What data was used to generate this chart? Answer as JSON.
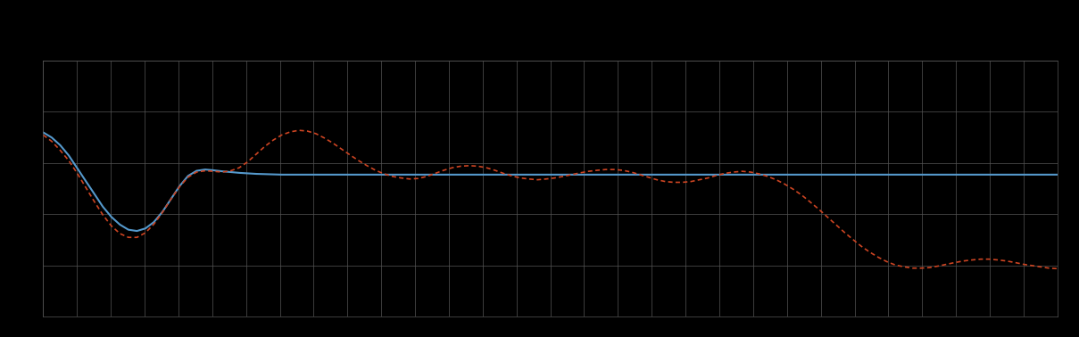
{
  "background_color": "#000000",
  "plot_bg_color": "#000000",
  "grid_color": "#555555",
  "text_color": "#cccccc",
  "blue_line_color": "#5599cc",
  "red_line_color": "#cc4422",
  "figsize": [
    12.09,
    3.78
  ],
  "dpi": 100,
  "xlim": [
    0,
    119
  ],
  "ylim": [
    0,
    10
  ],
  "num_vertical_gridlines": 30,
  "num_horizontal_gridlines": 5,
  "blue_y": [
    7.2,
    7.0,
    6.7,
    6.3,
    5.8,
    5.3,
    4.8,
    4.3,
    3.9,
    3.6,
    3.4,
    3.35,
    3.45,
    3.7,
    4.1,
    4.6,
    5.1,
    5.5,
    5.7,
    5.75,
    5.72,
    5.68,
    5.65,
    5.62,
    5.6,
    5.58,
    5.57,
    5.56,
    5.55,
    5.55,
    5.55,
    5.55,
    5.55,
    5.55,
    5.55,
    5.55,
    5.55,
    5.55,
    5.55,
    5.55,
    5.55,
    5.55,
    5.55,
    5.55,
    5.55,
    5.55,
    5.55,
    5.55,
    5.55,
    5.55,
    5.55,
    5.55,
    5.55,
    5.55,
    5.55,
    5.55,
    5.55,
    5.55,
    5.55,
    5.55,
    5.55,
    5.55,
    5.55,
    5.55,
    5.55,
    5.55,
    5.55,
    5.55,
    5.55,
    5.55,
    5.55,
    5.55,
    5.55,
    5.55,
    5.55,
    5.55,
    5.55,
    5.55,
    5.55,
    5.55,
    5.55,
    5.55,
    5.55,
    5.55,
    5.55,
    5.55,
    5.55,
    5.55,
    5.55,
    5.55,
    5.55,
    5.55,
    5.55,
    5.55,
    5.55,
    5.55,
    5.55,
    5.55,
    5.55,
    5.55,
    5.55,
    5.55,
    5.55,
    5.55,
    5.55,
    5.55,
    5.55,
    5.55,
    5.55,
    5.55,
    5.55,
    5.55,
    5.55,
    5.55,
    5.55,
    5.55,
    5.55,
    5.55,
    5.55,
    5.55
  ],
  "red_y": [
    7.1,
    6.85,
    6.5,
    6.1,
    5.6,
    5.05,
    4.5,
    3.98,
    3.55,
    3.25,
    3.1,
    3.1,
    3.28,
    3.62,
    4.08,
    4.6,
    5.08,
    5.45,
    5.65,
    5.7,
    5.68,
    5.65,
    5.7,
    5.82,
    6.05,
    6.35,
    6.65,
    6.9,
    7.1,
    7.22,
    7.28,
    7.25,
    7.15,
    6.98,
    6.78,
    6.55,
    6.32,
    6.1,
    5.9,
    5.72,
    5.58,
    5.48,
    5.42,
    5.38,
    5.4,
    5.48,
    5.6,
    5.72,
    5.82,
    5.88,
    5.9,
    5.88,
    5.82,
    5.72,
    5.6,
    5.5,
    5.42,
    5.38,
    5.35,
    5.38,
    5.42,
    5.48,
    5.55,
    5.62,
    5.68,
    5.72,
    5.75,
    5.75,
    5.72,
    5.65,
    5.55,
    5.45,
    5.35,
    5.28,
    5.25,
    5.25,
    5.28,
    5.35,
    5.42,
    5.52,
    5.6,
    5.65,
    5.68,
    5.65,
    5.58,
    5.48,
    5.35,
    5.18,
    4.98,
    4.75,
    4.48,
    4.2,
    3.9,
    3.6,
    3.3,
    3.02,
    2.75,
    2.52,
    2.32,
    2.15,
    2.02,
    1.95,
    1.9,
    1.9,
    1.92,
    1.98,
    2.05,
    2.12,
    2.18,
    2.22,
    2.25,
    2.25,
    2.22,
    2.18,
    2.12,
    2.05,
    2.0,
    1.95,
    1.9,
    1.88
  ]
}
